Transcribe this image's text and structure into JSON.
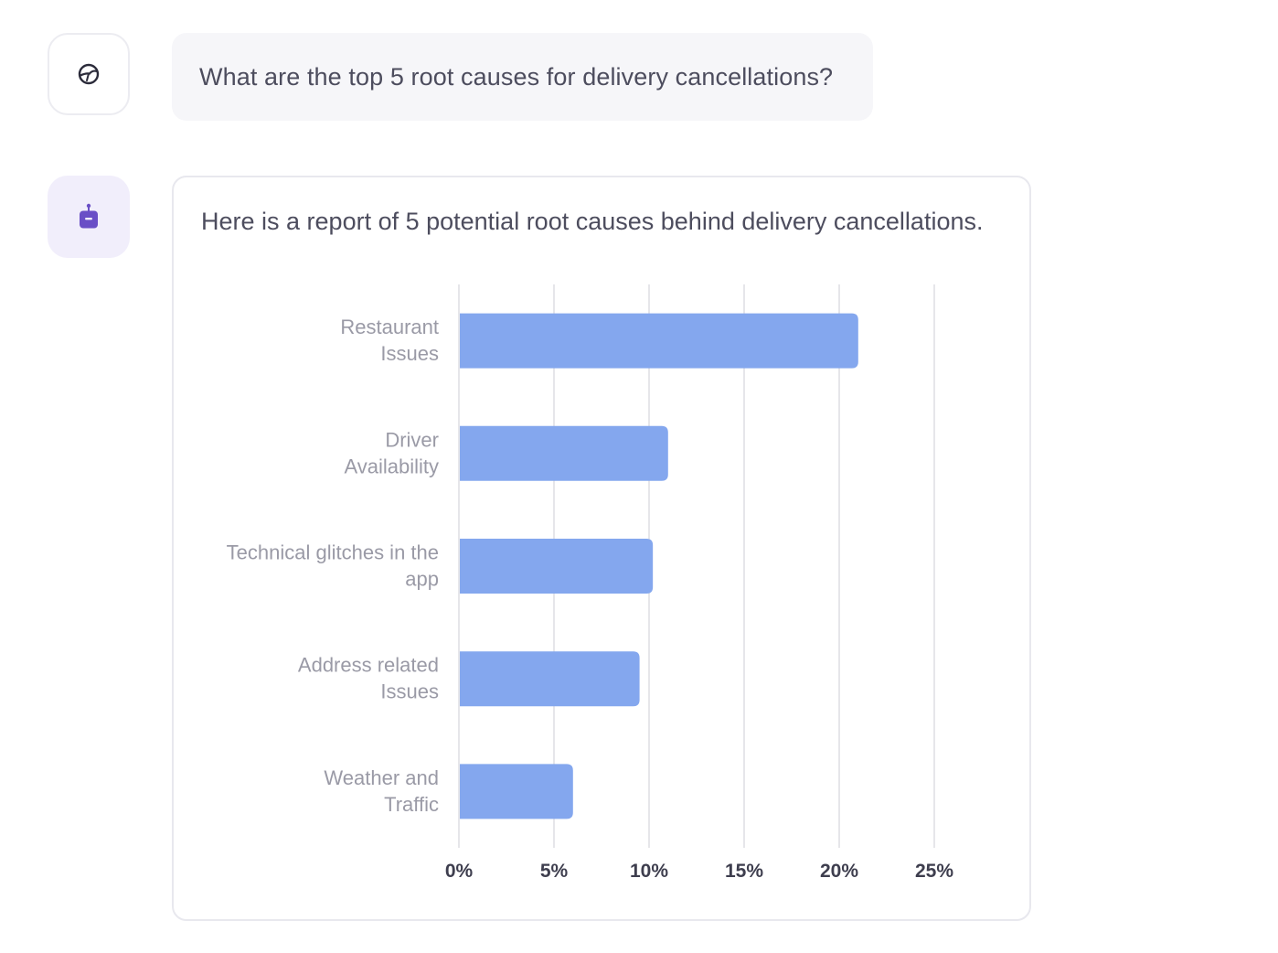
{
  "conversation": {
    "user_message": {
      "avatar_icon": "brain-icon",
      "text": "What are the top 5 root causes for delivery cancellations?"
    },
    "bot_message": {
      "avatar_icon": "robot-icon",
      "text": "Here is a report of 5 potential root causes behind delivery cancellations."
    }
  },
  "colors": {
    "bar": "#84a7ee",
    "grid": "#e6e6ea",
    "category_label": "#9a9aa6",
    "tick_label": "#3e3e4e",
    "bot_accent": "#6a4fc6"
  },
  "chart_data": {
    "type": "bar",
    "orientation": "horizontal",
    "categories": [
      [
        "Restaurant",
        "Issues"
      ],
      [
        "Driver",
        "Availability"
      ],
      [
        "Technical glitches in the",
        "app"
      ],
      [
        "Address related",
        "Issues"
      ],
      [
        "Weather and",
        "Traffic"
      ]
    ],
    "values": [
      21,
      11,
      10.2,
      9.5,
      6
    ],
    "xlim": [
      0,
      25
    ],
    "xticks": [
      "0%",
      "5%",
      "10%",
      "15%",
      "20%",
      "25%"
    ],
    "grid": true,
    "legend": "none"
  }
}
